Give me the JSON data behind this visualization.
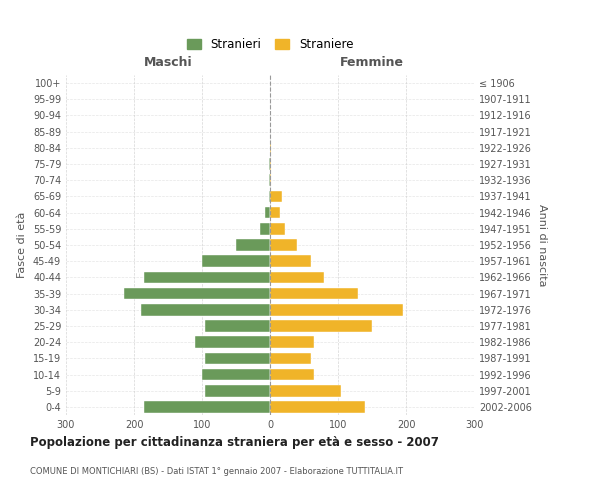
{
  "age_groups": [
    "0-4",
    "5-9",
    "10-14",
    "15-19",
    "20-24",
    "25-29",
    "30-34",
    "35-39",
    "40-44",
    "45-49",
    "50-54",
    "55-59",
    "60-64",
    "65-69",
    "70-74",
    "75-79",
    "80-84",
    "85-89",
    "90-94",
    "95-99",
    "100+"
  ],
  "birth_years": [
    "2002-2006",
    "1997-2001",
    "1992-1996",
    "1987-1991",
    "1982-1986",
    "1977-1981",
    "1972-1976",
    "1967-1971",
    "1962-1966",
    "1957-1961",
    "1952-1956",
    "1947-1951",
    "1942-1946",
    "1937-1941",
    "1932-1936",
    "1927-1931",
    "1922-1926",
    "1917-1921",
    "1912-1916",
    "1907-1911",
    "≤ 1906"
  ],
  "maschi": [
    185,
    95,
    100,
    95,
    110,
    95,
    190,
    215,
    185,
    100,
    50,
    14,
    8,
    2,
    1,
    1,
    0,
    0,
    0,
    0,
    0
  ],
  "femmine": [
    140,
    105,
    65,
    60,
    65,
    150,
    195,
    130,
    80,
    60,
    40,
    22,
    15,
    18,
    2,
    2,
    2,
    0,
    0,
    0,
    0
  ],
  "maschi_color": "#6a9a5a",
  "femmine_color": "#f0b429",
  "background_color": "#ffffff",
  "grid_color": "#cccccc",
  "title": "Popolazione per cittadinanza straniera per età e sesso - 2007",
  "subtitle": "COMUNE DI MONTICHIARI (BS) - Dati ISTAT 1° gennaio 2007 - Elaborazione TUTTITALIA.IT",
  "xlabel_left": "Maschi",
  "xlabel_right": "Femmine",
  "ylabel_left": "Fasce di età",
  "ylabel_right": "Anni di nascita",
  "legend_maschi": "Stranieri",
  "legend_femmine": "Straniere",
  "xlim": 300
}
